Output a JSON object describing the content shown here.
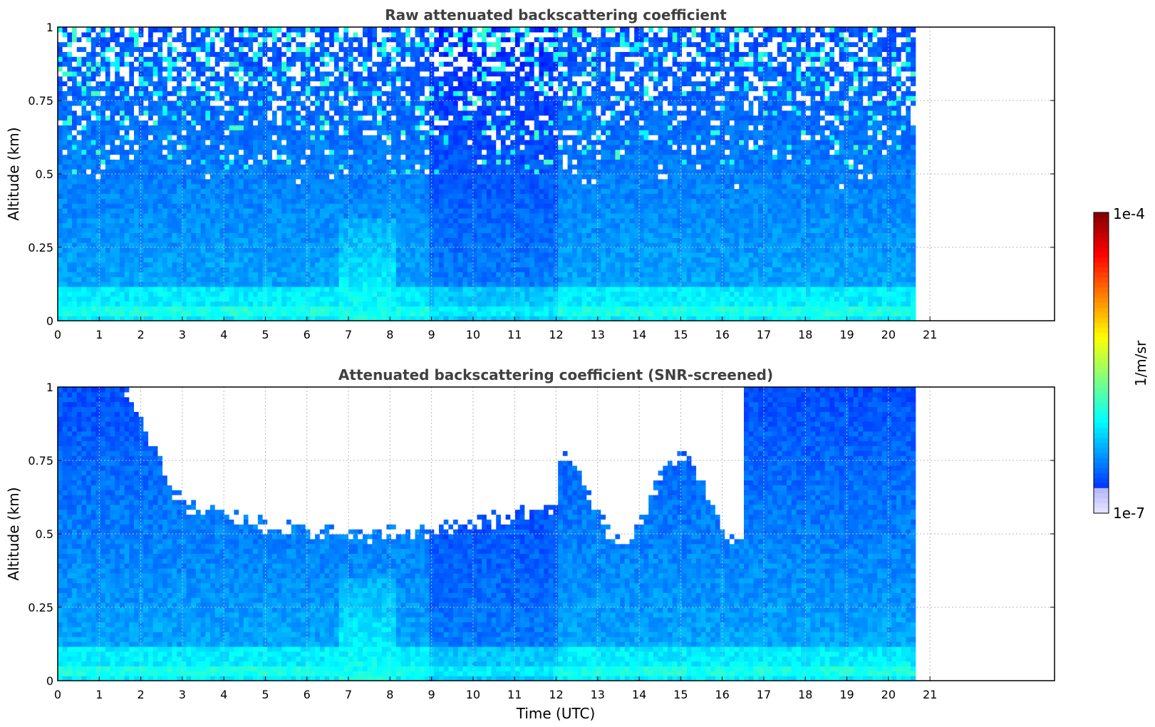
{
  "chart_data": [
    {
      "type": "heatmap",
      "title": "Raw attenuated backscattering coefficient",
      "xlabel": "",
      "ylabel": "Altitude (km)",
      "xlim": [
        0,
        24
      ],
      "ylim": [
        0,
        1
      ],
      "data_x_end": 20.65,
      "x_ticks": [
        "0",
        "1",
        "2",
        "3",
        "4",
        "5",
        "6",
        "7",
        "8",
        "9",
        "10",
        "11",
        "12",
        "13",
        "14",
        "15",
        "16",
        "17",
        "18",
        "19",
        "20",
        "21"
      ],
      "y_ticks": [
        "0",
        "0.25",
        "0.5",
        "0.75",
        "1"
      ],
      "grid": true,
      "screened": false
    },
    {
      "type": "heatmap",
      "title": "Attenuated backscattering coefficient (SNR-screened)",
      "xlabel": "Time (UTC)",
      "ylabel": "Altitude (km)",
      "xlim": [
        0,
        24
      ],
      "ylim": [
        0,
        1
      ],
      "data_x_end": 20.65,
      "x_ticks": [
        "0",
        "1",
        "2",
        "3",
        "4",
        "5",
        "6",
        "7",
        "8",
        "9",
        "10",
        "11",
        "12",
        "13",
        "14",
        "15",
        "16",
        "17",
        "18",
        "19",
        "20",
        "21"
      ],
      "y_ticks": [
        "0",
        "0.25",
        "0.5",
        "0.75",
        "1"
      ],
      "grid": true,
      "screened": true
    }
  ],
  "colorbar": {
    "label": "1/m/sr",
    "min_label": "1e-7",
    "max_label": "1e-4",
    "scale": "log",
    "colormap": "jet"
  }
}
